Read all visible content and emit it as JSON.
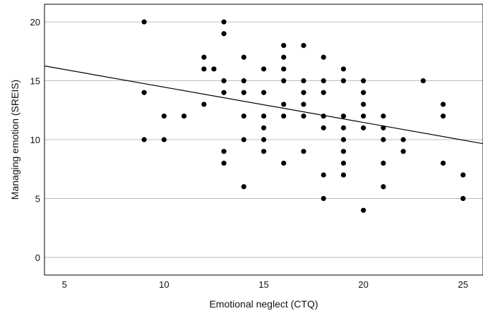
{
  "chart_data": {
    "type": "scatter",
    "title": "",
    "xlabel": "Emotional neglect (CTQ)",
    "ylabel": "Managing emotion (SREIS)",
    "xlim": [
      4,
      26
    ],
    "ylim": [
      -1.5,
      21.5
    ],
    "x_ticks": [
      5,
      10,
      15,
      20,
      25
    ],
    "y_ticks": [
      0,
      5,
      10,
      15,
      20
    ],
    "grid": "horizontal",
    "point_color": "#000000",
    "points": [
      [
        9,
        20
      ],
      [
        9,
        14
      ],
      [
        9,
        10
      ],
      [
        10,
        12
      ],
      [
        10,
        10
      ],
      [
        11,
        12
      ],
      [
        12,
        17
      ],
      [
        12,
        16
      ],
      [
        12,
        13
      ],
      [
        12.5,
        16
      ],
      [
        13,
        20
      ],
      [
        13,
        19
      ],
      [
        13,
        15
      ],
      [
        13,
        14
      ],
      [
        13,
        9
      ],
      [
        13,
        8
      ],
      [
        14,
        17
      ],
      [
        14,
        15
      ],
      [
        14,
        14
      ],
      [
        14,
        12
      ],
      [
        14,
        10
      ],
      [
        14,
        6
      ],
      [
        15,
        16
      ],
      [
        15,
        14
      ],
      [
        15,
        12
      ],
      [
        15,
        11
      ],
      [
        15,
        10
      ],
      [
        15,
        9
      ],
      [
        16,
        18
      ],
      [
        16,
        17
      ],
      [
        16,
        16
      ],
      [
        16,
        15
      ],
      [
        16,
        13
      ],
      [
        16,
        12
      ],
      [
        16,
        8
      ],
      [
        17,
        18
      ],
      [
        17,
        15
      ],
      [
        17,
        14
      ],
      [
        17,
        13
      ],
      [
        17,
        12
      ],
      [
        17,
        9
      ],
      [
        18,
        17
      ],
      [
        18,
        15
      ],
      [
        18,
        14
      ],
      [
        18,
        12
      ],
      [
        18,
        11
      ],
      [
        18,
        7
      ],
      [
        18,
        5
      ],
      [
        19,
        16
      ],
      [
        19,
        15
      ],
      [
        19,
        12
      ],
      [
        19,
        11
      ],
      [
        19,
        10
      ],
      [
        19,
        9
      ],
      [
        19,
        8
      ],
      [
        19,
        7
      ],
      [
        20,
        15
      ],
      [
        20,
        14
      ],
      [
        20,
        13
      ],
      [
        20,
        12
      ],
      [
        20,
        11
      ],
      [
        20,
        4
      ],
      [
        21,
        12
      ],
      [
        21,
        11
      ],
      [
        21,
        10
      ],
      [
        21,
        8
      ],
      [
        21,
        6
      ],
      [
        22,
        10
      ],
      [
        22,
        9
      ],
      [
        23,
        15
      ],
      [
        24,
        13
      ],
      [
        24,
        12
      ],
      [
        24,
        8
      ],
      [
        25,
        7
      ],
      [
        25,
        5
      ]
    ],
    "fit_line": {
      "intercept": 17.46,
      "slope": -0.3
    },
    "fit_line_color": "#000000"
  }
}
